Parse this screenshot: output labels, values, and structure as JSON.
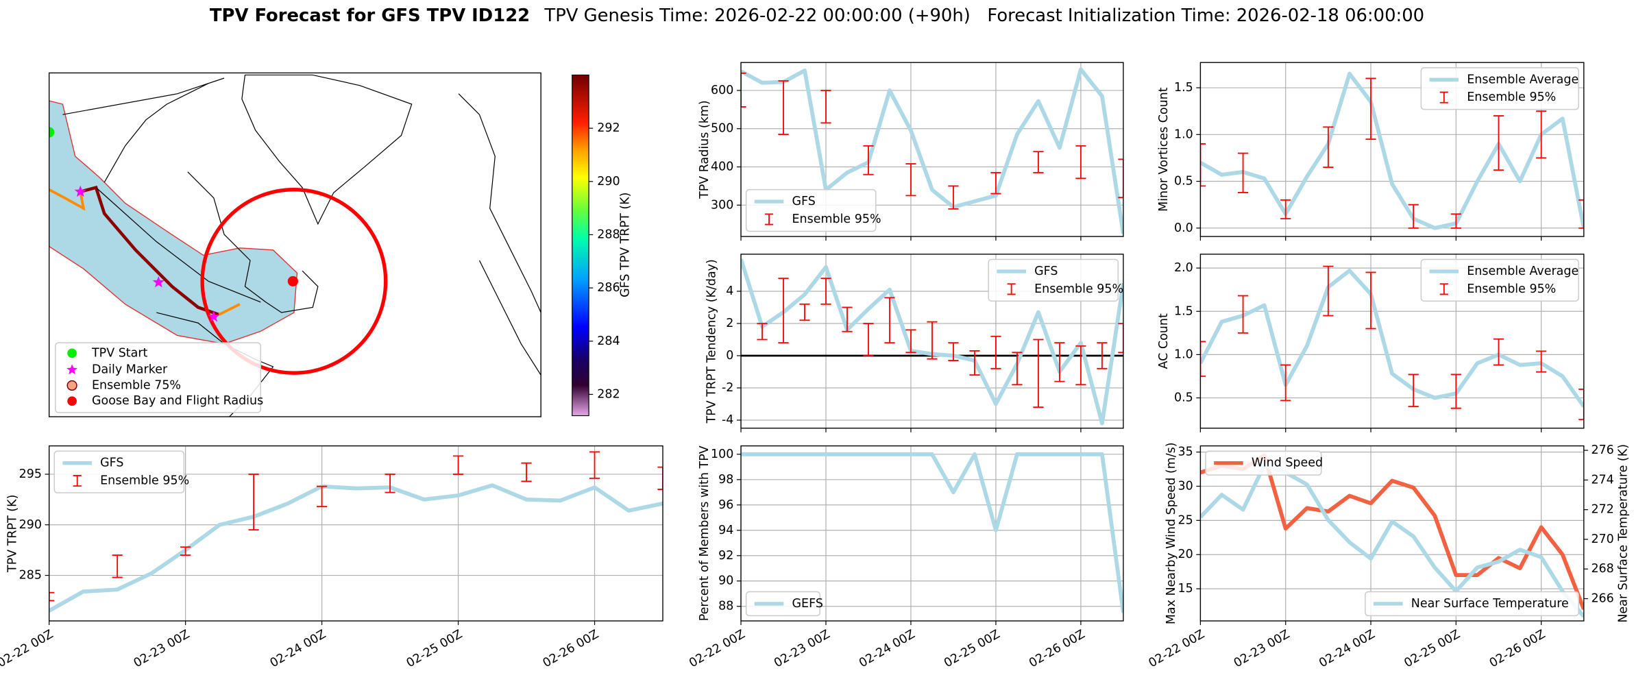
{
  "title": "TPV Forecast for GFS TPV ID122",
  "subtitle": "TPV Genesis Time: 2026-02-22 00:00:00 (+90h)   Forecast Initialization Time: 2026-02-18 06:00:00",
  "chart_data": [
    {
      "type": "map",
      "legend": [
        {
          "label": "TPV Start",
          "marker": "circle",
          "color": "#00ee00"
        },
        {
          "label": "Daily Marker",
          "marker": "star",
          "color": "#ff00ff"
        },
        {
          "label": "Ensemble 75%",
          "marker": "circle",
          "color": "#f4a582"
        },
        {
          "label": "Goose Bay and Flight Radius",
          "marker": "circle",
          "color": "#ff0000"
        }
      ],
      "colorbar": {
        "label": "GFS TPV TRPT (K)",
        "clim": [
          281.2,
          294.0
        ],
        "ticks": [
          282,
          284,
          286,
          288,
          290,
          292
        ]
      }
    },
    {
      "type": "line",
      "ylabel": "TPV Radius (km)",
      "categories": [
        null,
        null,
        null,
        null,
        null,
        null,
        null,
        null,
        null,
        null,
        null,
        null,
        null,
        null,
        null,
        null,
        null,
        null,
        null
      ],
      "ylim": [
        218,
        673
      ],
      "yticks": [
        300,
        400,
        500,
        600
      ],
      "grid": true,
      "legend": "lower left",
      "series": [
        {
          "name": "GFS",
          "color": "#add8e6",
          "values": [
            650,
            620,
            622,
            652,
            340,
            385,
            412,
            600,
            495,
            340,
            295,
            310,
            325,
            485,
            572,
            450,
            655,
            585,
            225
          ]
        },
        {
          "name": "Ensemble 95%",
          "color": "#ff0000",
          "type": "errorbar",
          "low": [
            557,
            null,
            485,
            null,
            515,
            null,
            380,
            null,
            325,
            null,
            290,
            null,
            330,
            null,
            385,
            null,
            370,
            null,
            320
          ],
          "high": [
            645,
            null,
            625,
            null,
            600,
            null,
            455,
            null,
            408,
            null,
            350,
            null,
            385,
            null,
            440,
            null,
            455,
            null,
            420
          ]
        }
      ]
    },
    {
      "type": "line",
      "ylabel": "TPV TRPT Tendency (K/day)",
      "categories": [
        null,
        null,
        null,
        null,
        null,
        null,
        null,
        null,
        null,
        null,
        null,
        null,
        null,
        null,
        null,
        null,
        null,
        null,
        null
      ],
      "ylim": [
        -4.5,
        6.3
      ],
      "yticks": [
        -4,
        -2,
        0,
        2,
        4
      ],
      "grid": true,
      "legend": "upper right",
      "hline": 0,
      "series": [
        {
          "name": "GFS",
          "color": "#add8e6",
          "values": [
            6.0,
            1.8,
            2.7,
            3.8,
            5.5,
            1.6,
            2.9,
            4.1,
            0.3,
            0.1,
            0.0,
            -0.3,
            -3.0,
            -0.5,
            2.7,
            -1.0,
            0.8,
            -4.2,
            4.5
          ]
        },
        {
          "name": "Ensemble 95%",
          "color": "#ff0000",
          "type": "errorbar",
          "low": [
            null,
            1.0,
            0.8,
            2.2,
            3.2,
            1.5,
            0.0,
            0.8,
            0.2,
            -0.2,
            -0.3,
            -1.2,
            -0.8,
            -1.8,
            -3.2,
            -1.6,
            -1.8,
            -0.8,
            0.2
          ],
          "high": [
            null,
            2.0,
            4.8,
            3.2,
            4.8,
            3.0,
            2.0,
            3.6,
            1.6,
            2.1,
            0.8,
            0.3,
            1.2,
            0.2,
            1.0,
            0.8,
            0.6,
            0.8,
            2.0
          ]
        }
      ]
    },
    {
      "type": "line",
      "ylabel": "Percent of Members with TPV",
      "categories": [
        "02-22 00Z",
        null,
        null,
        null,
        "02-23 00Z",
        null,
        null,
        null,
        "02-24 00Z",
        null,
        null,
        null,
        "02-25 00Z",
        null,
        null,
        null,
        "02-26 00Z",
        null,
        null
      ],
      "ylim": [
        86.85,
        100.66
      ],
      "yticks": [
        88,
        90,
        92,
        94,
        96,
        98,
        100
      ],
      "grid": true,
      "legend": "lower left",
      "series": [
        {
          "name": "GEFS",
          "color": "#add8e6",
          "values": [
            100,
            100,
            100,
            100,
            100,
            100,
            100,
            100,
            100,
            100,
            97,
            100,
            94,
            100,
            100,
            100,
            100,
            100,
            87.5
          ]
        }
      ]
    },
    {
      "type": "line",
      "ylabel": "Minor Vortices Count",
      "categories": [
        null,
        null,
        null,
        null,
        null,
        null,
        null,
        null,
        null,
        null,
        null,
        null,
        null,
        null,
        null,
        null,
        null,
        null,
        null
      ],
      "ylim": [
        -0.09,
        1.77
      ],
      "yticks": [
        {
          "value": 0,
          "label": "0.0"
        },
        0.5,
        {
          "value": 1,
          "label": "1.0"
        },
        1.5
      ],
      "grid": true,
      "legend": "upper right",
      "series": [
        {
          "name": "Ensemble Average",
          "color": "#add8e6",
          "values": [
            0.7,
            0.57,
            0.6,
            0.53,
            0.15,
            0.55,
            0.9,
            1.65,
            1.35,
            0.47,
            0.1,
            0.0,
            0.05,
            0.5,
            0.9,
            0.5,
            1.0,
            1.17,
            0.0
          ]
        },
        {
          "name": "Ensemble 95%",
          "color": "#ff0000",
          "type": "errorbar",
          "low": [
            0.45,
            null,
            0.38,
            null,
            0.1,
            null,
            0.65,
            null,
            0.95,
            null,
            0.0,
            null,
            0.0,
            null,
            0.62,
            null,
            0.75,
            null,
            0.0
          ],
          "high": [
            0.9,
            null,
            0.8,
            null,
            0.3,
            null,
            1.08,
            null,
            1.6,
            null,
            0.25,
            null,
            0.15,
            null,
            1.2,
            null,
            1.25,
            null,
            0.3
          ]
        }
      ]
    },
    {
      "type": "line",
      "ylabel": "AC Count",
      "categories": [
        null,
        null,
        null,
        null,
        null,
        null,
        null,
        null,
        null,
        null,
        null,
        null,
        null,
        null,
        null,
        null,
        null,
        null,
        null
      ],
      "ylim": [
        0.15,
        2.16
      ],
      "yticks": [
        0.5,
        {
          "value": 1,
          "label": "1.0"
        },
        1.5,
        {
          "value": 2,
          "label": "2.0"
        }
      ],
      "grid": true,
      "legend": "upper right",
      "series": [
        {
          "name": "Ensemble Average",
          "color": "#add8e6",
          "values": [
            0.9,
            1.38,
            1.45,
            1.57,
            0.65,
            1.1,
            1.78,
            1.97,
            1.7,
            0.78,
            0.6,
            0.5,
            0.55,
            0.9,
            1.0,
            0.88,
            0.9,
            0.75,
            0.4
          ]
        },
        {
          "name": "Ensemble 95%",
          "color": "#ff0000",
          "type": "errorbar",
          "low": [
            0.75,
            null,
            1.25,
            null,
            0.47,
            null,
            1.45,
            null,
            1.3,
            null,
            0.4,
            null,
            0.38,
            null,
            0.88,
            null,
            0.8,
            null,
            0.25
          ],
          "high": [
            1.15,
            null,
            1.68,
            null,
            0.88,
            null,
            2.02,
            null,
            1.95,
            null,
            0.77,
            null,
            0.77,
            null,
            1.18,
            null,
            1.04,
            null,
            0.6
          ]
        }
      ]
    },
    {
      "type": "line",
      "ylabel": "TPV TRPT (K)",
      "categories": [
        "02-22 00Z",
        null,
        null,
        null,
        "02-23 00Z",
        null,
        null,
        null,
        "02-24 00Z",
        null,
        null,
        null,
        "02-25 00Z",
        null,
        null,
        null,
        "02-26 00Z",
        null,
        null
      ],
      "ylim": [
        280.5,
        297.8
      ],
      "yticks": [
        285,
        290,
        295
      ],
      "grid": true,
      "legend": "upper left",
      "series": [
        {
          "name": "GFS",
          "color": "#add8e6",
          "values": [
            281.5,
            283.4,
            283.6,
            285.2,
            287.5,
            290,
            290.8,
            292.1,
            293.8,
            293.6,
            293.7,
            292.5,
            292.9,
            293.9,
            292.5,
            292.4,
            293.7,
            291.4,
            292.1
          ]
        },
        {
          "name": "Ensemble 95%",
          "color": "#ff0000",
          "type": "errorbar",
          "low": [
            282.5,
            null,
            284.8,
            null,
            287,
            null,
            289.5,
            null,
            291.8,
            null,
            293.2,
            null,
            295,
            null,
            294.3,
            null,
            294.6,
            null,
            293.5
          ],
          "high": [
            283.3,
            null,
            287,
            null,
            287.8,
            null,
            295,
            null,
            293.8,
            null,
            295,
            null,
            296.8,
            null,
            296.1,
            null,
            297.2,
            null,
            295.7
          ]
        }
      ]
    },
    {
      "type": "line",
      "ylabel": "Max Nearby Wind Speed (m/s)",
      "ylabel_color": "#f26241",
      "y2label": "Near Surface Temperature (K)",
      "y2label_color": "#4169e1",
      "categories": [
        "02-22 00Z",
        null,
        null,
        null,
        "02-23 00Z",
        null,
        null,
        null,
        "02-24 00Z",
        null,
        null,
        null,
        "02-25 00Z",
        null,
        null,
        null,
        "02-26 00Z",
        null,
        null
      ],
      "ylim": [
        10.3,
        35.9
      ],
      "yticks": [
        15,
        20,
        25,
        30,
        35
      ],
      "y2lim": [
        264.5,
        276.3
      ],
      "y2ticks": [
        266,
        268,
        270,
        272,
        274,
        276
      ],
      "grid": true,
      "series": [
        {
          "name": "Wind Speed",
          "color": "#f26241",
          "legend": "upper left",
          "values": [
            32,
            33,
            32.5,
            34.5,
            23.8,
            26.8,
            26.3,
            28.6,
            27.5,
            30.8,
            29.8,
            25.7,
            17,
            17,
            19.5,
            18,
            24,
            20,
            12
          ]
        },
        {
          "name": "Near Surface Temperature",
          "color": "#add8e6",
          "axis": "y2",
          "legend": "lower right",
          "values": [
            271.5,
            273.0,
            272.0,
            275.0,
            274.5,
            273.7,
            271.3,
            269.8,
            268.7,
            271.2,
            270.2,
            268.1,
            266.5,
            268.1,
            268.5,
            269.3,
            268.8,
            266.5,
            264.8
          ]
        }
      ]
    }
  ]
}
